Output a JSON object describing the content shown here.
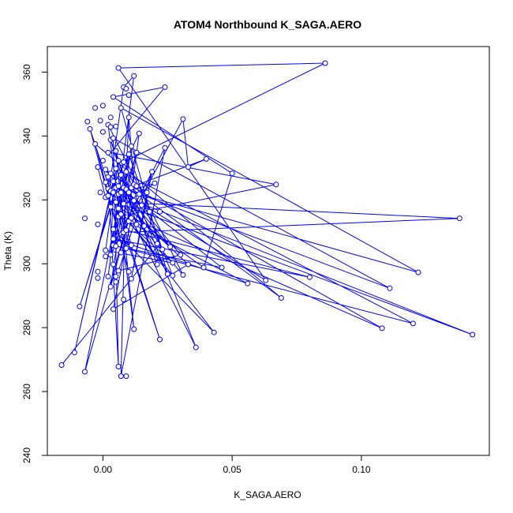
{
  "chart_data": {
    "type": "scatter",
    "title": "ATOM4 Northbound K_SAGA.AERO",
    "xlabel": "K_SAGA.AERO",
    "ylabel": "Theta (K)",
    "xlim": [
      -0.0215,
      0.1495
    ],
    "ylim": [
      240,
      368
    ],
    "xticks": [
      0.0,
      0.05,
      0.1
    ],
    "xtick_labels": [
      "0.00",
      "0.05",
      "0.10"
    ],
    "yticks": [
      240,
      260,
      280,
      300,
      320,
      340,
      360
    ],
    "ytick_labels": [
      "240",
      "260",
      "280",
      "300",
      "320",
      "340",
      "360"
    ],
    "grid": false,
    "legend": "none",
    "colors": {
      "series": "#0000ff",
      "axes": "#000000",
      "background": "#ffffff"
    },
    "series": [
      {
        "points": [
          [
            -0.016,
            268.3
          ],
          [
            -0.011,
            272.2
          ],
          [
            -0.009,
            286.6
          ],
          [
            -0.007,
            314.2
          ],
          [
            -0.007,
            266.2
          ],
          [
            -0.006,
            344.5
          ],
          [
            -0.005,
            342.2
          ],
          [
            -0.003,
            348.8
          ],
          [
            -0.003,
            337.5
          ],
          [
            -0.002,
            330.3
          ],
          [
            -0.002,
            312.3
          ],
          [
            -0.002,
            297.5
          ],
          [
            -0.002,
            295.5
          ],
          [
            -0.001,
            344.8
          ],
          [
            -0.001,
            322.3
          ],
          [
            0.0,
            349.5
          ],
          [
            0.0,
            341.3
          ],
          [
            0.0,
            332.3
          ],
          [
            0.001,
            329.5
          ],
          [
            0.001,
            325.5
          ],
          [
            0.001,
            320.8
          ],
          [
            0.001,
            304.2
          ],
          [
            0.001,
            302.3
          ],
          [
            0.002,
            343.5
          ],
          [
            0.002,
            334.8
          ],
          [
            0.002,
            327.2
          ],
          [
            0.002,
            323.5
          ],
          [
            0.002,
            321.3
          ],
          [
            0.002,
            296.0
          ],
          [
            0.003,
            345.8
          ],
          [
            0.003,
            342.8
          ],
          [
            0.003,
            338.8
          ],
          [
            0.003,
            328.3
          ],
          [
            0.003,
            322.8
          ],
          [
            0.003,
            317.8
          ],
          [
            0.003,
            302.8
          ],
          [
            0.003,
            292.8
          ],
          [
            0.004,
            352.2
          ],
          [
            0.004,
            339.3
          ],
          [
            0.004,
            325.8
          ],
          [
            0.004,
            322.3
          ],
          [
            0.004,
            310.8
          ],
          [
            0.004,
            307.8
          ],
          [
            0.004,
            305.8
          ],
          [
            0.004,
            299.8
          ],
          [
            0.004,
            285.8
          ],
          [
            0.005,
            343.0
          ],
          [
            0.005,
            335.3
          ],
          [
            0.005,
            329.8
          ],
          [
            0.005,
            323.8
          ],
          [
            0.005,
            319.3
          ],
          [
            0.005,
            305.5
          ],
          [
            0.005,
            296.0
          ],
          [
            0.005,
            294.3
          ],
          [
            0.006,
            361.3
          ],
          [
            0.006,
            332.3
          ],
          [
            0.006,
            324.3
          ],
          [
            0.006,
            321.8
          ],
          [
            0.006,
            317.3
          ],
          [
            0.006,
            314.8
          ],
          [
            0.006,
            297.8
          ],
          [
            0.006,
            267.8
          ],
          [
            0.007,
            348.8
          ],
          [
            0.007,
            327.8
          ],
          [
            0.007,
            322.3
          ],
          [
            0.007,
            315.5
          ],
          [
            0.007,
            303.5
          ],
          [
            0.007,
            264.8
          ],
          [
            0.008,
            355.3
          ],
          [
            0.008,
            331.8
          ],
          [
            0.008,
            323.8
          ],
          [
            0.008,
            318.8
          ],
          [
            0.008,
            309.8
          ],
          [
            0.008,
            288.8
          ],
          [
            0.009,
            354.8
          ],
          [
            0.009,
            328.8
          ],
          [
            0.009,
            323.3
          ],
          [
            0.009,
            310.5
          ],
          [
            0.009,
            304.8
          ],
          [
            0.009,
            264.8
          ],
          [
            0.01,
            352.8
          ],
          [
            0.01,
            345.8
          ],
          [
            0.01,
            334.3
          ],
          [
            0.01,
            322.3
          ],
          [
            0.01,
            313.3
          ],
          [
            0.01,
            297.5
          ],
          [
            0.011,
            336.8
          ],
          [
            0.011,
            323.8
          ],
          [
            0.011,
            314.3
          ],
          [
            0.011,
            305.8
          ],
          [
            0.011,
            295.3
          ],
          [
            0.012,
            358.8
          ],
          [
            0.012,
            324.8
          ],
          [
            0.012,
            319.8
          ],
          [
            0.012,
            279.5
          ],
          [
            0.013,
            334.8
          ],
          [
            0.013,
            324.3
          ],
          [
            0.013,
            312.3
          ],
          [
            0.014,
            340.8
          ],
          [
            0.014,
            321.8
          ],
          [
            0.015,
            318.3
          ],
          [
            0.016,
            311.8
          ],
          [
            0.017,
            322.3
          ],
          [
            0.018,
            316.3
          ],
          [
            0.019,
            328.8
          ],
          [
            0.02,
            325.2
          ],
          [
            0.021,
            306.3
          ],
          [
            0.021,
            299.8
          ],
          [
            0.022,
            316.3
          ],
          [
            0.022,
            276.3
          ],
          [
            0.023,
            304.5
          ],
          [
            0.024,
            355.3
          ],
          [
            0.024,
            336.3
          ],
          [
            0.025,
            296.8
          ],
          [
            0.026,
            305.3
          ],
          [
            0.027,
            296.3
          ],
          [
            0.027,
            300.3
          ],
          [
            0.03,
            302.8
          ],
          [
            0.031,
            345.3
          ],
          [
            0.031,
            296.5
          ],
          [
            0.033,
            330.3
          ],
          [
            0.033,
            299.8
          ],
          [
            0.036,
            273.8
          ],
          [
            0.039,
            298.8
          ],
          [
            0.04,
            332.8
          ],
          [
            0.043,
            278.5
          ],
          [
            0.046,
            298.8
          ],
          [
            0.05,
            328.3
          ],
          [
            0.056,
            293.8
          ],
          [
            0.063,
            294.8
          ],
          [
            0.067,
            324.8
          ],
          [
            0.069,
            289.3
          ],
          [
            0.08,
            295.8
          ],
          [
            0.086,
            362.8
          ],
          [
            0.108,
            279.8
          ],
          [
            0.111,
            292.3
          ],
          [
            0.12,
            281.3
          ],
          [
            0.122,
            297.3
          ],
          [
            0.138,
            314.2
          ],
          [
            0.143,
            277.8
          ]
        ],
        "path": [
          [
            -0.016,
            268.3
          ],
          [
            0.022,
            306.3
          ],
          [
            0.004,
            325.8
          ],
          [
            -0.011,
            272.2
          ],
          [
            0.006,
            332.3
          ],
          [
            0.001,
            304.2
          ],
          [
            0.027,
            300.3
          ],
          [
            0.003,
            317.8
          ],
          [
            -0.009,
            286.6
          ],
          [
            0.005,
            323.8
          ],
          [
            0.063,
            294.8
          ],
          [
            0.006,
            361.3
          ],
          [
            0.086,
            362.8
          ],
          [
            0.008,
            331.8
          ],
          [
            0.012,
            324.8
          ],
          [
            0.01,
            345.8
          ],
          [
            0.008,
            309.8
          ],
          [
            0.138,
            314.2
          ],
          [
            0.005,
            319.3
          ],
          [
            0.143,
            277.8
          ],
          [
            0.004,
            322.3
          ],
          [
            0.003,
            302.8
          ],
          [
            0.011,
            336.8
          ],
          [
            0.003,
            292.8
          ],
          [
            0.012,
            319.8
          ],
          [
            -0.007,
            266.2
          ],
          [
            0.01,
            334.3
          ],
          [
            0.023,
            304.5
          ],
          [
            0.005,
            329.8
          ],
          [
            0.12,
            281.3
          ],
          [
            0.004,
            305.8
          ],
          [
            0.024,
            336.3
          ],
          [
            0.007,
            264.8
          ],
          [
            0.009,
            328.8
          ],
          [
            0.036,
            273.8
          ],
          [
            0.005,
            323.8
          ],
          [
            0.122,
            297.3
          ],
          [
            0.007,
            348.8
          ],
          [
            0.025,
            296.8
          ],
          [
            0.009,
            322.3
          ],
          [
            0.01,
            313.3
          ],
          [
            0.043,
            278.5
          ],
          [
            0.004,
            310.8
          ],
          [
            0.013,
            334.8
          ],
          [
            0.003,
            302.8
          ],
          [
            0.031,
            345.3
          ],
          [
            0.033,
            330.3
          ],
          [
            0.04,
            332.8
          ],
          [
            0.002,
            321.3
          ],
          [
            0.008,
            355.3
          ],
          [
            0.012,
            358.8
          ],
          [
            0.002,
            296.0
          ],
          [
            0.007,
            327.8
          ],
          [
            0.005,
            305.5
          ],
          [
            0.046,
            298.8
          ],
          [
            0.006,
            324.3
          ],
          [
            0.111,
            292.3
          ],
          [
            0.004,
            339.3
          ],
          [
            0.006,
            267.8
          ],
          [
            0.002,
            327.2
          ],
          [
            0.022,
            276.3
          ],
          [
            -0.005,
            342.2
          ],
          [
            0.01,
            297.5
          ],
          [
            -0.003,
            337.5
          ],
          [
            0.069,
            289.3
          ],
          [
            0.001,
            329.5
          ],
          [
            0.026,
            305.3
          ],
          [
            0.008,
            318.8
          ],
          [
            0.033,
            299.8
          ],
          [
            0.004,
            285.8
          ],
          [
            0.011,
            314.3
          ],
          [
            0.108,
            279.8
          ],
          [
            -0.002,
            330.3
          ],
          [
            0.001,
            320.8
          ],
          [
            0.039,
            298.8
          ],
          [
            0.05,
            328.3
          ],
          [
            0.004,
            352.2
          ],
          [
            0.024,
            355.3
          ],
          [
            0.003,
            334.8
          ],
          [
            0.067,
            324.8
          ],
          [
            0.006,
            314.8
          ],
          [
            0.056,
            293.8
          ],
          [
            0.004,
            307.8
          ],
          [
            0.08,
            295.8
          ],
          [
            0.009,
            310.5
          ],
          [
            0.014,
            340.8
          ],
          [
            0.003,
            322.8
          ],
          [
            0.031,
            296.5
          ],
          [
            0.002,
            343.5
          ],
          [
            0.012,
            279.5
          ],
          [
            0.005,
            335.3
          ],
          [
            0.013,
            312.3
          ],
          [
            0.003,
            338.8
          ],
          [
            0.021,
            299.8
          ],
          [
            0.01,
            322.3
          ],
          [
            0.03,
            302.8
          ],
          [
            0.006,
            297.8
          ],
          [
            0.019,
            328.8
          ],
          [
            0.011,
            295.3
          ],
          [
            0.017,
            322.3
          ],
          [
            0.013,
            324.3
          ],
          [
            0.027,
            296.3
          ],
          [
            0.006,
            317.3
          ],
          [
            0.02,
            325.2
          ],
          [
            0.006,
            321.8
          ],
          [
            0.011,
            305.8
          ]
        ]
      }
    ]
  }
}
